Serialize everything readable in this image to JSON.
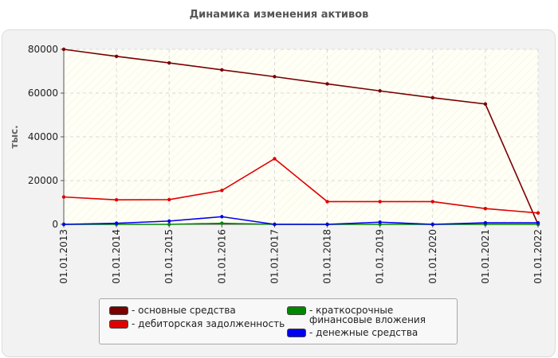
{
  "title": "Динамика изменения активов",
  "chart_data": {
    "type": "line",
    "title": "Динамика изменения активов",
    "ylabel": "тыс.",
    "xlabel": "",
    "categories": [
      "01.01.2013",
      "01.01.2014",
      "01.01.2015",
      "01.01.2016",
      "01.01.2017",
      "01.01.2018",
      "01.01.2019",
      "01.01.2020",
      "01.01.2021",
      "01.01.2022"
    ],
    "ylim": [
      0,
      80000
    ],
    "yticks": [
      0,
      20000,
      40000,
      60000,
      80000
    ],
    "ytick_labels": [
      "0",
      "20000",
      "40000",
      "60000",
      "80000"
    ],
    "grid": true,
    "legend_position": "bottom",
    "series": [
      {
        "name": "- основные средства",
        "color": "#7a0000",
        "values": [
          80000,
          76800,
          73800,
          70600,
          67500,
          64200,
          61000,
          57900,
          55000,
          0
        ]
      },
      {
        "name": "- дебиторская задолженность",
        "color": "#e00000",
        "values": [
          12500,
          11200,
          11300,
          15500,
          30000,
          10400,
          10400,
          10400,
          7200,
          5200
        ]
      },
      {
        "name": "- краткосрочные финансовые вложения",
        "color": "#008800",
        "values": [
          0,
          0,
          0,
          500,
          0,
          0,
          0,
          0,
          0,
          0
        ]
      },
      {
        "name": "- денежные средства",
        "color": "#0000ee",
        "values": [
          0,
          500,
          1500,
          3500,
          0,
          0,
          1000,
          0,
          700,
          700
        ]
      }
    ]
  }
}
